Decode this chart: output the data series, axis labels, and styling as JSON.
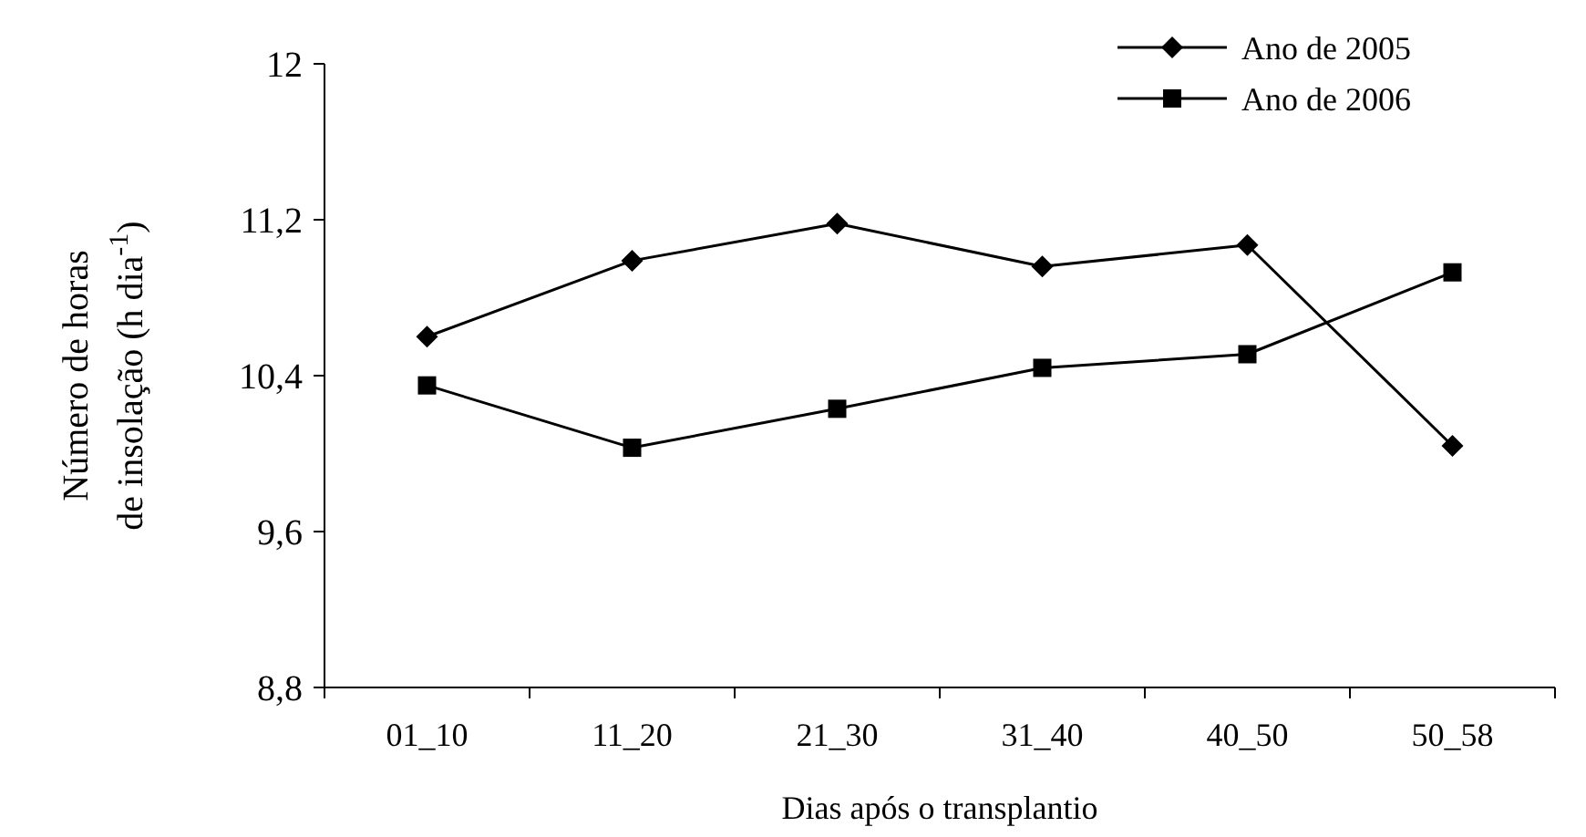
{
  "chart_data": {
    "type": "line",
    "xlabel": "Dias após o transplantio",
    "ylabel": "Número de horas de insolação (h dia$^{-1}$)",
    "categories": [
      "01_10",
      "11_20",
      "21_30",
      "31_40",
      "40_50",
      "50_58"
    ],
    "series": [
      {
        "name": "Ano de 2005",
        "color": "#000000",
        "marker": "diamond",
        "values": [
          10.6,
          10.99,
          11.18,
          10.96,
          11.07,
          10.04
        ]
      },
      {
        "name": "Ano de 2006",
        "color": "#000000",
        "marker": "square",
        "values": [
          10.35,
          10.03,
          10.23,
          10.44,
          10.51,
          10.93
        ]
      }
    ],
    "ylim": [
      8.8,
      12
    ],
    "yticks": [
      {
        "value": 8.8,
        "label": "8,8"
      },
      {
        "value": 9.6,
        "label": "9,6"
      },
      {
        "value": 10.4,
        "label": "10,4"
      },
      {
        "value": 11.2,
        "label": "11,2"
      },
      {
        "value": 12,
        "label": "12"
      }
    ],
    "grid": false,
    "legend": "top right",
    "line_style": "solid"
  }
}
